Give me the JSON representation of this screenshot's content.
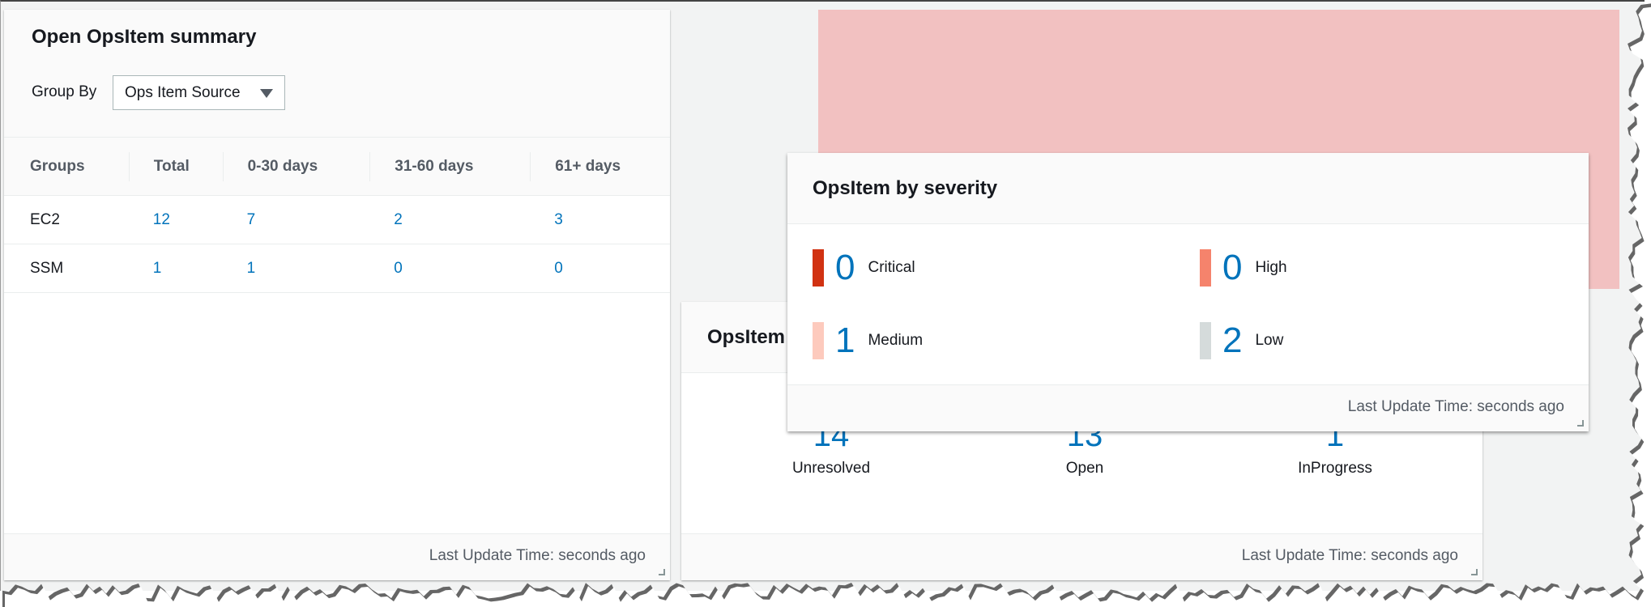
{
  "summary": {
    "title": "Open OpsItem summary",
    "group_by_label": "Group By",
    "group_by_value": "Ops Item Source",
    "columns": [
      "Groups",
      "Total",
      "0-30 days",
      "31-60 days",
      "61+ days"
    ],
    "rows": [
      [
        "EC2",
        "12",
        "7",
        "2",
        "3"
      ],
      [
        "SSM",
        "1",
        "1",
        "0",
        "0"
      ]
    ],
    "footer": "Last Update Time: seconds ago"
  },
  "status": {
    "title": "OpsItem",
    "stats": [
      {
        "value": "14",
        "label": "Unresolved"
      },
      {
        "value": "13",
        "label": "Open"
      },
      {
        "value": "1",
        "label": "InProgress"
      }
    ],
    "footer": "Last Update Time: seconds ago"
  },
  "severity": {
    "title": "OpsItem by severity",
    "items": [
      {
        "value": "0",
        "label": "Critical",
        "color": "#d13212"
      },
      {
        "value": "0",
        "label": "High",
        "color": "#f5836c"
      },
      {
        "value": "1",
        "label": "Medium",
        "color": "#fdcabd"
      },
      {
        "value": "2",
        "label": "Low",
        "color": "#d5dbdb"
      }
    ],
    "footer": "Last Update Time: seconds ago"
  },
  "colors": {
    "link": "#0073bb",
    "highlight": "#f2c1c1",
    "background": "#f2f3f3"
  }
}
